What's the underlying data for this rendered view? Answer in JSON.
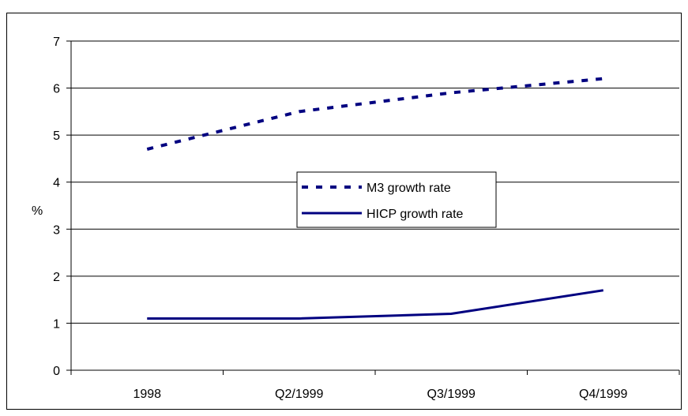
{
  "chart_data": {
    "type": "line",
    "title": "",
    "xlabel": "",
    "ylabel": "%",
    "categories": [
      "1998",
      "Q2/1999",
      "Q3/1999",
      "Q4/1999"
    ],
    "ylim": [
      0,
      7
    ],
    "yticks": [
      "0",
      "1",
      "2",
      "3",
      "4",
      "5",
      "6",
      "7"
    ],
    "grid": true,
    "legend_position": "center",
    "series": [
      {
        "name": "M3 growth rate",
        "values": [
          4.7,
          5.5,
          5.9,
          6.2
        ],
        "style": "dashed",
        "color": "#000080"
      },
      {
        "name": "HICP growth rate",
        "values": [
          1.1,
          1.1,
          1.2,
          1.7
        ],
        "style": "solid",
        "color": "#000080"
      }
    ]
  }
}
